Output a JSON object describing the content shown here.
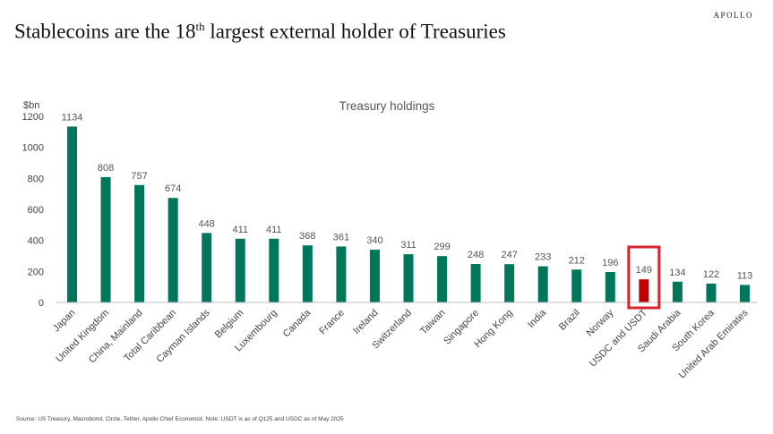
{
  "brand": "APOLLO",
  "headline": {
    "pre": "Stablecoins are the 18",
    "sup": "th",
    "post": " largest external holder of Treasuries"
  },
  "source": "Source: US Treasury, Macrobond, Circle, Tether, Apollo Chief Economist. Note: USDT is as of Q125 and USDC as of May 2025",
  "colors": {
    "bar": "#00775a",
    "highlight_bar": "#c00000",
    "highlight_box": "#d9232e",
    "baseline": "#bfbfbf"
  },
  "chart_data": {
    "type": "bar",
    "title": "Treasury holdings",
    "ylabel": "$bn",
    "xlabel": "",
    "ylim": [
      0,
      1200
    ],
    "yticks": [
      0,
      200,
      400,
      600,
      800,
      1000,
      1200
    ],
    "grid": false,
    "categories": [
      "Japan",
      "United Kingdom",
      "China, Mainland",
      "Total Caribbean",
      "Cayman Islands",
      "Belgium",
      "Luxembourg",
      "Canada",
      "France",
      "Ireland",
      "Switzerland",
      "Taiwan",
      "Singapore",
      "Hong Kong",
      "India",
      "Brazil",
      "Norway",
      "USDC and USDT",
      "Saudi Arabia",
      "South Korea",
      "United Arab Emirates"
    ],
    "values": [
      1134,
      808,
      757,
      674,
      448,
      411,
      411,
      368,
      361,
      340,
      311,
      299,
      248,
      247,
      233,
      212,
      196,
      149,
      134,
      122,
      113
    ],
    "data_labels": [
      "1134",
      "808",
      "757",
      "674",
      "448",
      "411",
      "411",
      "368",
      "361",
      "340",
      "311",
      "299",
      "248",
      "247",
      "233",
      "212",
      "196",
      "149",
      "134",
      "122",
      "113"
    ],
    "highlight": "USDC and USDT"
  }
}
